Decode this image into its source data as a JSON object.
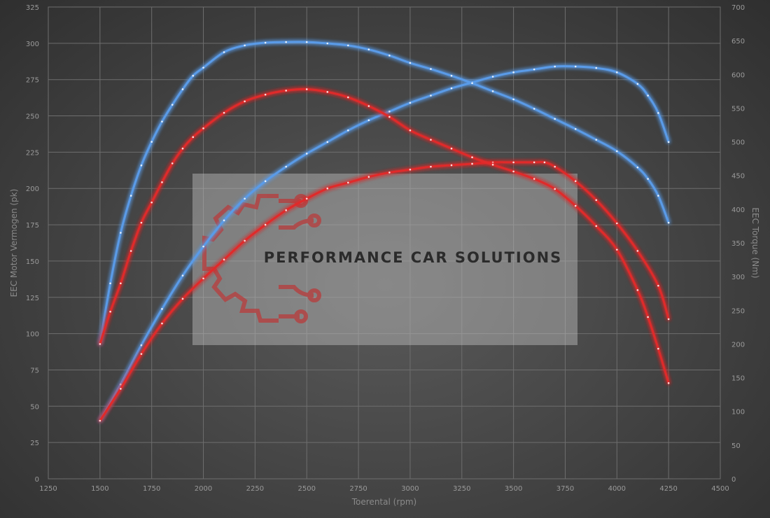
{
  "chart_data": {
    "type": "line",
    "title": "",
    "xlabel": "Toerental (rpm)",
    "ylabel": "EEC Motor Vermogen (pk)",
    "y2label": "EEC Torque (Nm)",
    "xlim": [
      1250,
      4500
    ],
    "ylim": [
      0,
      325
    ],
    "y2lim": [
      0,
      700
    ],
    "x_ticks": [
      1250,
      1500,
      1750,
      2000,
      2250,
      2500,
      2750,
      3000,
      3250,
      3500,
      3750,
      4000,
      4250,
      4500
    ],
    "y_ticks": [
      0,
      25,
      50,
      75,
      100,
      125,
      150,
      175,
      200,
      225,
      250,
      275,
      300,
      325
    ],
    "y2_ticks": [
      0,
      50,
      100,
      150,
      200,
      250,
      300,
      350,
      400,
      450,
      500,
      550,
      600,
      650,
      700
    ],
    "grid": true,
    "series": [
      {
        "axis": "left",
        "color": "#5a9be8",
        "x": [
          1500,
          1600,
          1700,
          1800,
          1900,
          2000,
          2100,
          2200,
          2300,
          2400,
          2500,
          2600,
          2700,
          2800,
          2900,
          3000,
          3100,
          3200,
          3300,
          3400,
          3500,
          3600,
          3700,
          3800,
          3900,
          4000,
          4100,
          4150,
          4200,
          4250
        ],
        "values": [
          40,
          65,
          92,
          117,
          140,
          160,
          178,
          193,
          205,
          215,
          224,
          232,
          240,
          247,
          253,
          259,
          264,
          269,
          273,
          277,
          280,
          282,
          284,
          284,
          283,
          280,
          272,
          264,
          252,
          232
        ]
      },
      {
        "axis": "right",
        "color": "#5a9be8",
        "x": [
          1500,
          1550,
          1600,
          1650,
          1700,
          1750,
          1800,
          1850,
          1900,
          1950,
          2000,
          2100,
          2200,
          2300,
          2400,
          2500,
          2600,
          2700,
          2800,
          2900,
          3000,
          3100,
          3200,
          3300,
          3400,
          3500,
          3600,
          3700,
          3800,
          3900,
          4000,
          4100,
          4150,
          4200,
          4250
        ],
        "values": [
          200,
          290,
          365,
          420,
          465,
          500,
          530,
          555,
          578,
          598,
          610,
          633,
          643,
          647,
          648,
          648,
          646,
          643,
          637,
          628,
          617,
          608,
          598,
          587,
          575,
          563,
          549,
          534,
          519,
          503,
          486,
          462,
          445,
          420,
          380
        ]
      },
      {
        "axis": "left",
        "color": "#e02a2a",
        "x": [
          1500,
          1600,
          1700,
          1800,
          1900,
          2000,
          2100,
          2200,
          2300,
          2400,
          2500,
          2600,
          2700,
          2800,
          2900,
          3000,
          3100,
          3200,
          3300,
          3400,
          3500,
          3600,
          3650,
          3700,
          3800,
          3900,
          4000,
          4100,
          4200,
          4250
        ],
        "values": [
          40,
          62,
          86,
          107,
          124,
          138,
          151,
          164,
          175,
          185,
          193,
          200,
          204,
          208,
          211,
          213,
          215,
          216,
          217,
          218,
          218,
          218,
          218,
          215,
          205,
          192,
          176,
          157,
          133,
          110
        ]
      },
      {
        "axis": "right",
        "color": "#e02a2a",
        "x": [
          1500,
          1550,
          1600,
          1650,
          1700,
          1750,
          1800,
          1850,
          1900,
          1950,
          2000,
          2100,
          2200,
          2300,
          2400,
          2500,
          2600,
          2700,
          2800,
          2900,
          3000,
          3100,
          3200,
          3300,
          3400,
          3500,
          3600,
          3700,
          3800,
          3900,
          4000,
          4100,
          4150,
          4200,
          4250
        ],
        "values": [
          200,
          248,
          290,
          338,
          380,
          410,
          440,
          468,
          490,
          507,
          520,
          543,
          560,
          570,
          576,
          578,
          574,
          566,
          553,
          537,
          517,
          503,
          490,
          477,
          466,
          456,
          445,
          430,
          405,
          375,
          340,
          280,
          240,
          193,
          142
        ]
      }
    ],
    "watermark": "PERFORMANCE CAR SOLUTIONS"
  }
}
